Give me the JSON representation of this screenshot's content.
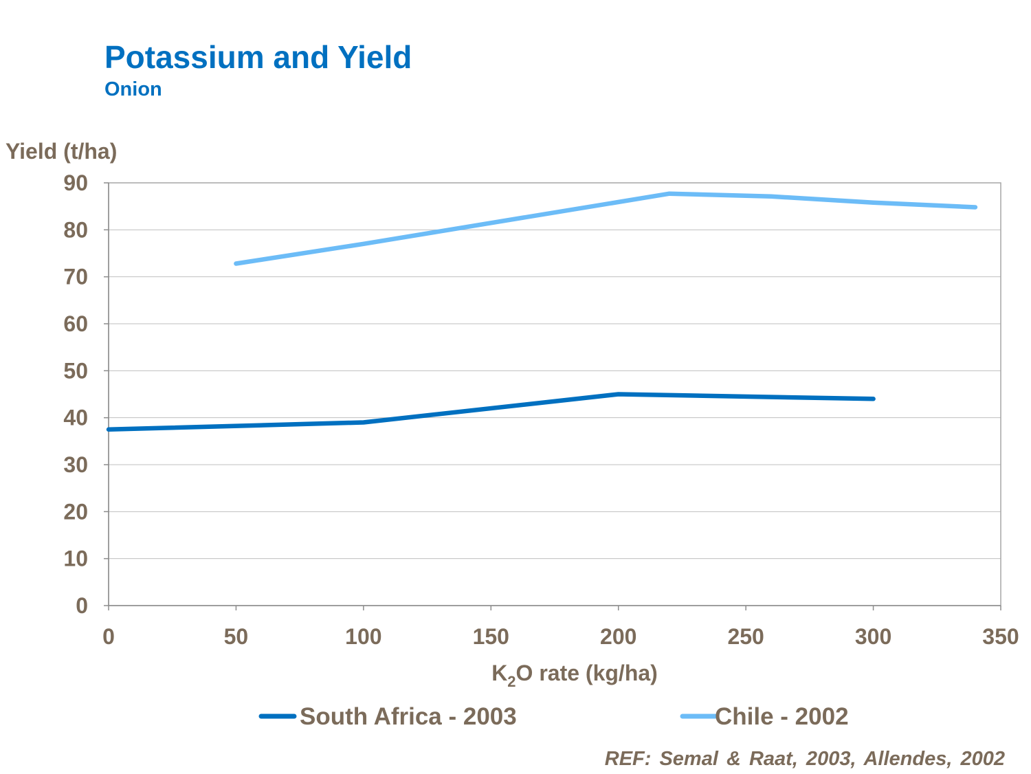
{
  "chart_data": {
    "type": "line",
    "title": "Potassium and Yield",
    "subtitle": "Onion",
    "ylabel": "Yield (t/ha)",
    "xlabel_parts": [
      "K",
      "2",
      "O rate (kg/ha)"
    ],
    "xlim": [
      0,
      350
    ],
    "ylim": [
      0,
      90
    ],
    "xticks": [
      0,
      50,
      100,
      150,
      200,
      250,
      300,
      350
    ],
    "yticks": [
      0,
      10,
      20,
      30,
      40,
      50,
      60,
      70,
      80,
      90
    ],
    "grid": true,
    "legend_position": "bottom",
    "series": [
      {
        "name": "South Africa - 2003",
        "color": "#0070c0",
        "x": [
          0,
          100,
          200,
          300
        ],
        "y": [
          37.5,
          39,
          45,
          44
        ]
      },
      {
        "name": "Chile - 2002",
        "color": "#6cbcf7",
        "x": [
          50,
          100,
          220,
          260,
          300,
          340
        ],
        "y": [
          72.8,
          77,
          87.7,
          87.1,
          85.8,
          84.8
        ]
      }
    ]
  },
  "reference": "REF: Semal & Raat, 2003, Allendes, 2002"
}
